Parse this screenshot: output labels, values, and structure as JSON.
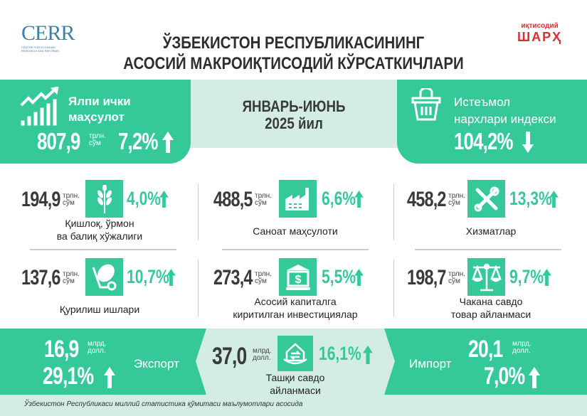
{
  "header": {
    "logo_left": "CERR",
    "logo_left_sub": "CENTRE FOR ECONOMIC RESEARCH AND REFORMS",
    "logo_right_top": "иқтисодий",
    "logo_right_bottom": "ШАРҲ",
    "title_line1": "ЎЗБЕКИСТОН РЕСПУБЛИКАСИНИНГ",
    "title_line2": "АСОСИЙ МАКРОИҚТИСОДИЙ КЎРСАТКИЧЛАРИ"
  },
  "gdp": {
    "label1": "Ялпи ички",
    "label2": "маҳсулот",
    "value": "807,9",
    "unit1": "трлн.",
    "unit2": "сўм",
    "pct": "7,2%",
    "trend": "up",
    "icon": "growth-chart-icon"
  },
  "period": {
    "line1": "ЯНВАРЬ-ИЮНЬ",
    "line2": "2025 йил"
  },
  "cpi": {
    "label1": "Истеъмол",
    "label2": "нархлари индекси",
    "pct": "104,2%",
    "trend": "down",
    "icon": "basket-icon"
  },
  "sectors": [
    {
      "value": "194,9",
      "unit1": "трлн.",
      "unit2": "сўм",
      "pct": "4,0%",
      "label1": "Қишлоқ, ўрмон",
      "label2": "ва балиқ хўжалиги",
      "icon": "wheat-icon"
    },
    {
      "value": "488,5",
      "unit1": "трлн.",
      "unit2": "сўм",
      "pct": "6,6%",
      "label1": "Саноат маҳсулоти",
      "label2": "",
      "icon": "factory-icon"
    },
    {
      "value": "458,2",
      "unit1": "трлн.",
      "unit2": "сўм",
      "pct": "13,3%",
      "label1": "Хизматлар",
      "label2": "",
      "icon": "tools-icon"
    },
    {
      "value": "137,6",
      "unit1": "трлн.",
      "unit2": "сўм",
      "pct": "10,7%",
      "label1": "Қурилиш ишлари",
      "label2": "",
      "icon": "cement-mixer-icon"
    },
    {
      "value": "273,4",
      "unit1": "трлн.",
      "unit2": "сўм",
      "pct": "5,5%",
      "label1": "Асосий капиталга",
      "label2": "киритилган инвестициялар",
      "icon": "bank-icon"
    },
    {
      "value": "198,7",
      "unit1": "трлн.",
      "unit2": "сўм",
      "pct": "9,7%",
      "label1": "Чакана савдо",
      "label2": "товар айланмаси",
      "icon": "scales-icon"
    }
  ],
  "export": {
    "value": "16,9",
    "unit1": "млрд.",
    "unit2": "долл.",
    "pct": "29,1%",
    "label": "Экспорт"
  },
  "trade": {
    "value": "37,0",
    "unit1": "млрд.",
    "unit2": "долл.",
    "pct": "16,1%",
    "label1": "Ташқи савдо",
    "label2": "айланмаси",
    "icon": "trade-house-icon"
  },
  "import": {
    "value": "20,1",
    "unit1": "млрд.",
    "unit2": "долл.",
    "pct": "7,0%",
    "label": "Импорт"
  },
  "footer": {
    "source": "Ўзбекистон Республикаси миллий статистика қўмитаси маълумотлари асосида"
  },
  "colors": {
    "accent": "#35c99a",
    "light": "#d3ede3",
    "brand_red": "#e02b35",
    "text": "#3a3a3a"
  }
}
